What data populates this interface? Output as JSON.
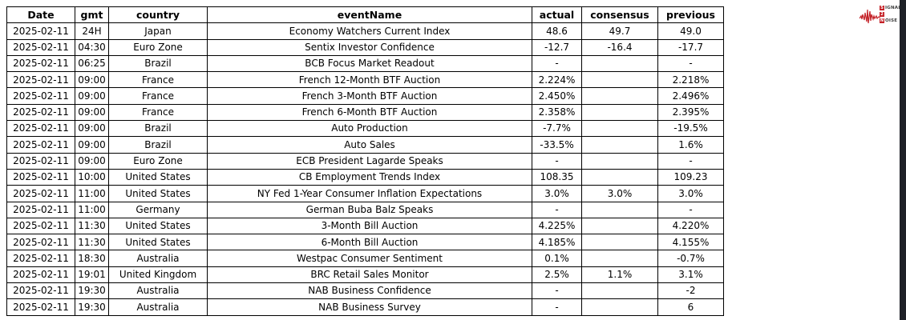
{
  "page": {
    "background": "#ffffff",
    "right_bar_color": "#1e2127"
  },
  "logo": {
    "name": "signal-2-noise",
    "signal_letter": "S",
    "signal_rest": "IGNAL",
    "middle_digit": "2",
    "noise_letter": "N",
    "noise_rest": "OISE",
    "accent_red": "#c42127",
    "text_color": "#3d3d3d"
  },
  "chart_data": {
    "type": "table",
    "columns": [
      "Date",
      "gmt",
      "country",
      "eventName",
      "actual",
      "consensus",
      "previous"
    ],
    "rows": [
      [
        "2025-02-11",
        "24H",
        "Japan",
        "Economy Watchers Current Index",
        "48.6",
        "49.7",
        "49.0"
      ],
      [
        "2025-02-11",
        "04:30",
        "Euro Zone",
        "Sentix Investor Confidence",
        "-12.7",
        "-16.4",
        "-17.7"
      ],
      [
        "2025-02-11",
        "06:25",
        "Brazil",
        "BCB Focus Market Readout",
        "-",
        "",
        "-"
      ],
      [
        "2025-02-11",
        "09:00",
        "France",
        "French 12-Month BTF Auction",
        "2.224%",
        "",
        "2.218%"
      ],
      [
        "2025-02-11",
        "09:00",
        "France",
        "French 3-Month BTF Auction",
        "2.450%",
        "",
        "2.496%"
      ],
      [
        "2025-02-11",
        "09:00",
        "France",
        "French 6-Month BTF Auction",
        "2.358%",
        "",
        "2.395%"
      ],
      [
        "2025-02-11",
        "09:00",
        "Brazil",
        "Auto Production",
        "-7.7%",
        "",
        "-19.5%"
      ],
      [
        "2025-02-11",
        "09:00",
        "Brazil",
        "Auto Sales",
        "-33.5%",
        "",
        "1.6%"
      ],
      [
        "2025-02-11",
        "09:00",
        "Euro Zone",
        "ECB President Lagarde Speaks",
        "-",
        "",
        "-"
      ],
      [
        "2025-02-11",
        "10:00",
        "United States",
        "CB Employment Trends Index",
        "108.35",
        "",
        "109.23"
      ],
      [
        "2025-02-11",
        "11:00",
        "United States",
        "NY Fed 1-Year Consumer Inflation Expectations",
        "3.0%",
        "3.0%",
        "3.0%"
      ],
      [
        "2025-02-11",
        "11:00",
        "Germany",
        "German Buba Balz Speaks",
        "-",
        "",
        "-"
      ],
      [
        "2025-02-11",
        "11:30",
        "United States",
        "3-Month Bill Auction",
        "4.225%",
        "",
        "4.220%"
      ],
      [
        "2025-02-11",
        "11:30",
        "United States",
        "6-Month Bill Auction",
        "4.185%",
        "",
        "4.155%"
      ],
      [
        "2025-02-11",
        "18:30",
        "Australia",
        "Westpac Consumer Sentiment",
        "0.1%",
        "",
        "-0.7%"
      ],
      [
        "2025-02-11",
        "19:01",
        "United Kingdom",
        "BRC Retail Sales Monitor",
        "2.5%",
        "1.1%",
        "3.1%"
      ],
      [
        "2025-02-11",
        "19:30",
        "Australia",
        "NAB Business Confidence",
        "-",
        "",
        "-2"
      ],
      [
        "2025-02-11",
        "19:30",
        "Australia",
        "NAB Business Survey",
        "-",
        "",
        "6"
      ]
    ]
  }
}
